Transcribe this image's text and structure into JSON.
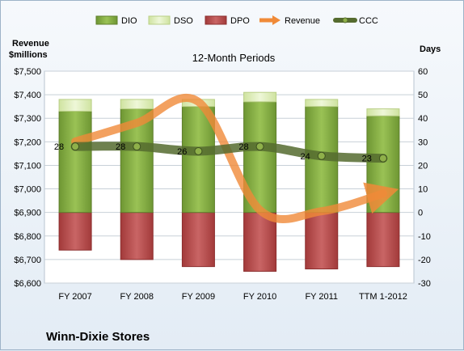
{
  "chart_data": {
    "type": "bar",
    "title": "12-Month Periods",
    "company": "Winn-Dixie Stores",
    "y_left_label_line1": "Revenue",
    "y_left_label_line2": "$millions",
    "y_right_label": "Days",
    "categories": [
      "FY 2007",
      "FY 2008",
      "FY 2009",
      "FY 2010",
      "FY 2011",
      "TTM 1-2012"
    ],
    "left_axis": {
      "ylim": [
        6600,
        7500
      ],
      "ticks": [
        "$6,600",
        "$6,700",
        "$6,800",
        "$6,900",
        "$7,000",
        "$7,100",
        "$7,200",
        "$7,300",
        "$7,400",
        "$7,500"
      ]
    },
    "right_axis": {
      "ylim": [
        -30,
        60
      ],
      "ticks": [
        "-30",
        "-20",
        "-10",
        "0",
        "10",
        "20",
        "30",
        "40",
        "50",
        "60"
      ]
    },
    "series": [
      {
        "name": "DIO",
        "axis": "right",
        "values": [
          43,
          44,
          45,
          47,
          45,
          41
        ],
        "color": "#7aa23d"
      },
      {
        "name": "DSO",
        "axis": "right",
        "values": [
          5,
          4,
          3,
          4,
          3,
          3
        ],
        "color": "#dcebb5"
      },
      {
        "name": "DPO",
        "axis": "right",
        "values": [
          -16,
          -20,
          -23,
          -25,
          -24,
          -23
        ],
        "color": "#b84848"
      },
      {
        "name": "Revenue",
        "axis": "left",
        "values": [
          7201,
          7280,
          7370,
          6910,
          6905,
          6980
        ],
        "color": "#f08a38"
      },
      {
        "name": "CCC",
        "axis": "right",
        "values": [
          28,
          28,
          26,
          28,
          24,
          23
        ],
        "color": "#556b2f"
      }
    ],
    "ccc_labels": [
      "28",
      "28",
      "26",
      "28",
      "24",
      "23"
    ],
    "grid": true,
    "legend_position": "top"
  }
}
